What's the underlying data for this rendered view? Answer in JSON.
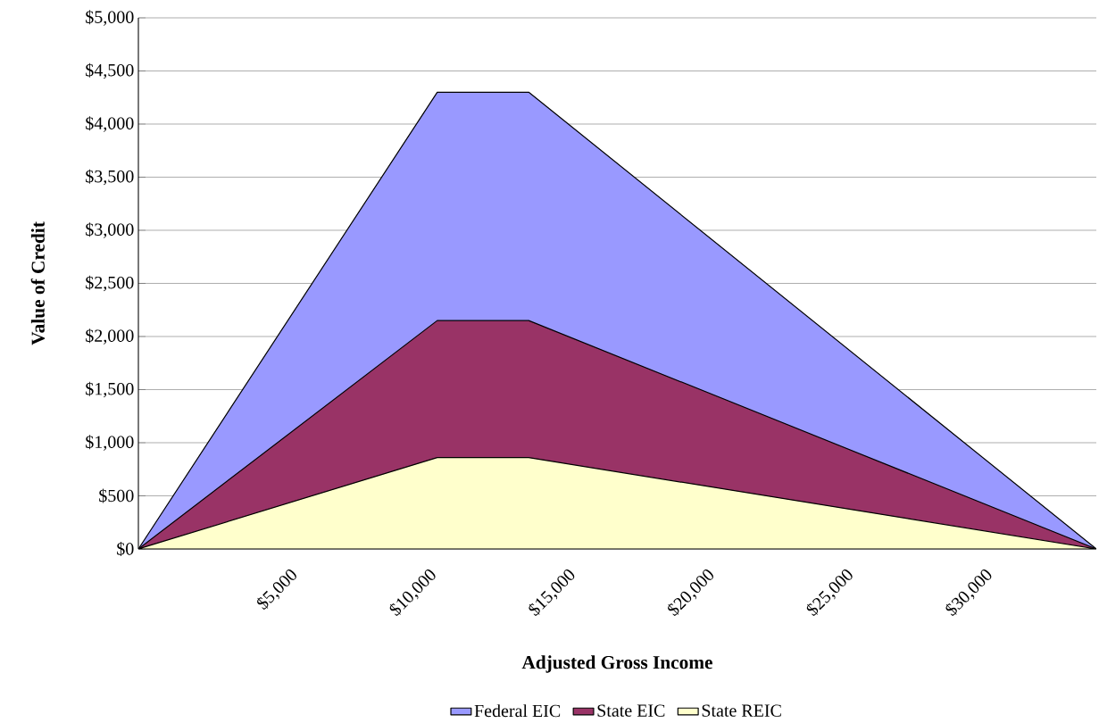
{
  "chart_data": {
    "type": "area",
    "xlabel": "Adjusted Gross Income",
    "ylabel": "Value of Credit",
    "x": [
      0,
      10750,
      14040,
      34458
    ],
    "series": [
      {
        "name": "Federal EIC",
        "color": "#9999ff",
        "values": [
          0,
          4300,
          4300,
          0
        ]
      },
      {
        "name": "State EIC",
        "color": "#993366",
        "values": [
          0,
          2150,
          2150,
          0
        ]
      },
      {
        "name": "State REIC",
        "color": "#ffffcc",
        "values": [
          0,
          860,
          860,
          0
        ]
      }
    ],
    "xlim": [
      0,
      34458
    ],
    "xticks": [
      {
        "value": 5000,
        "label": "$5,000"
      },
      {
        "value": 10000,
        "label": "$10,000"
      },
      {
        "value": 15000,
        "label": "$15,000"
      },
      {
        "value": 20000,
        "label": "$20,000"
      },
      {
        "value": 25000,
        "label": "$25,000"
      },
      {
        "value": 30000,
        "label": "$30,000"
      }
    ],
    "ylim": [
      0,
      5000
    ],
    "yticks": [
      {
        "value": 0,
        "label": "$0"
      },
      {
        "value": 500,
        "label": "$500"
      },
      {
        "value": 1000,
        "label": "$1,000"
      },
      {
        "value": 1500,
        "label": "$1,500"
      },
      {
        "value": 2000,
        "label": "$2,000"
      },
      {
        "value": 2500,
        "label": "$2,500"
      },
      {
        "value": 3000,
        "label": "$3,000"
      },
      {
        "value": 3500,
        "label": "$3,500"
      },
      {
        "value": 4000,
        "label": "$4,000"
      },
      {
        "value": 4500,
        "label": "$4,500"
      },
      {
        "value": 5000,
        "label": "$5,000"
      }
    ],
    "grid": "y",
    "legend": "bottom"
  }
}
